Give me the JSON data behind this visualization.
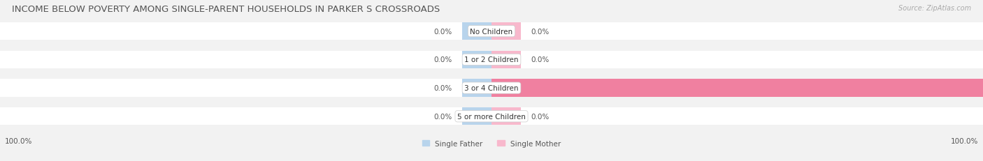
{
  "title": "INCOME BELOW POVERTY AMONG SINGLE-PARENT HOUSEHOLDS IN PARKER S CROSSROADS",
  "source": "Source: ZipAtlas.com",
  "categories": [
    "No Children",
    "1 or 2 Children",
    "3 or 4 Children",
    "5 or more Children"
  ],
  "single_father": [
    0.0,
    0.0,
    0.0,
    0.0
  ],
  "single_mother": [
    0.0,
    0.0,
    100.0,
    0.0
  ],
  "father_color": "#a8c8e8",
  "mother_color": "#f080a0",
  "mother_light_color": "#f8b8cc",
  "father_light_color": "#b8d4ec",
  "bg_color": "#f2f2f2",
  "bar_bg_color": "#e8e8e8",
  "row_bg_color": "#e8e8e8",
  "title_fontsize": 9.5,
  "source_fontsize": 7,
  "label_fontsize": 7.5,
  "cat_fontsize": 7.5,
  "bar_height": 0.62,
  "legend_father": "Single Father",
  "legend_mother": "Single Mother",
  "bottom_left_label": "100.0%",
  "bottom_right_label": "100.0%"
}
